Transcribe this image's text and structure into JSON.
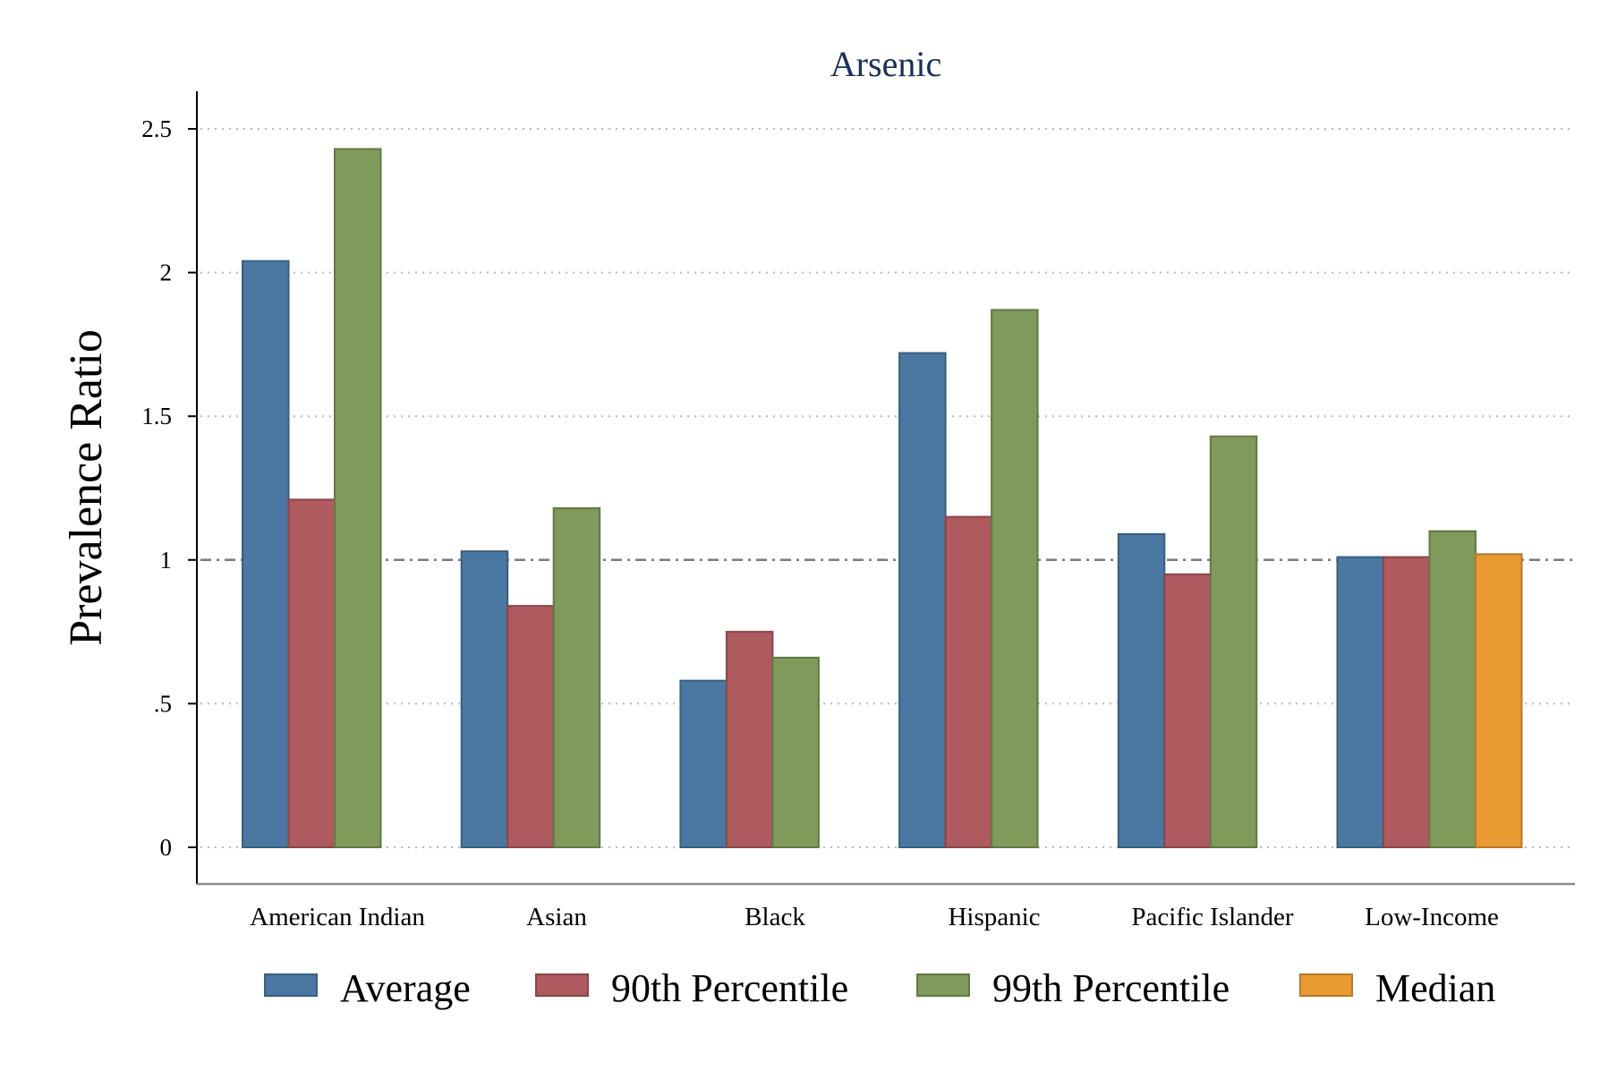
{
  "chart_data": {
    "type": "bar",
    "title": "Arsenic",
    "xlabel": "",
    "ylabel": "Prevalence Ratio",
    "ylim": [
      0,
      2.65
    ],
    "yticks": [
      0,
      0.5,
      1,
      1.5,
      2,
      2.5
    ],
    "ytick_labels": [
      "0",
      ".5",
      "1",
      "1.5",
      "2",
      "2.5"
    ],
    "reference_line": 1,
    "grid": "horizontal dotted",
    "legend_position": "bottom",
    "categories": [
      "American Indian",
      "Asian",
      "Black",
      "Hispanic",
      "Pacific Islander",
      "Low-Income"
    ],
    "series": [
      {
        "name": "Average",
        "color": "#4a78a2",
        "values": [
          2.04,
          1.03,
          0.58,
          1.72,
          1.09,
          1.01
        ]
      },
      {
        "name": "90th Percentile",
        "color": "#ae5a5f",
        "values": [
          1.21,
          0.84,
          0.75,
          1.15,
          0.95,
          1.01
        ]
      },
      {
        "name": "99th Percentile",
        "color": "#7f9a5a",
        "values": [
          2.43,
          1.18,
          0.66,
          1.87,
          1.43,
          1.1
        ]
      },
      {
        "name": "Median",
        "color": "#e99a33",
        "values": [
          null,
          null,
          null,
          null,
          null,
          1.02
        ]
      }
    ]
  }
}
